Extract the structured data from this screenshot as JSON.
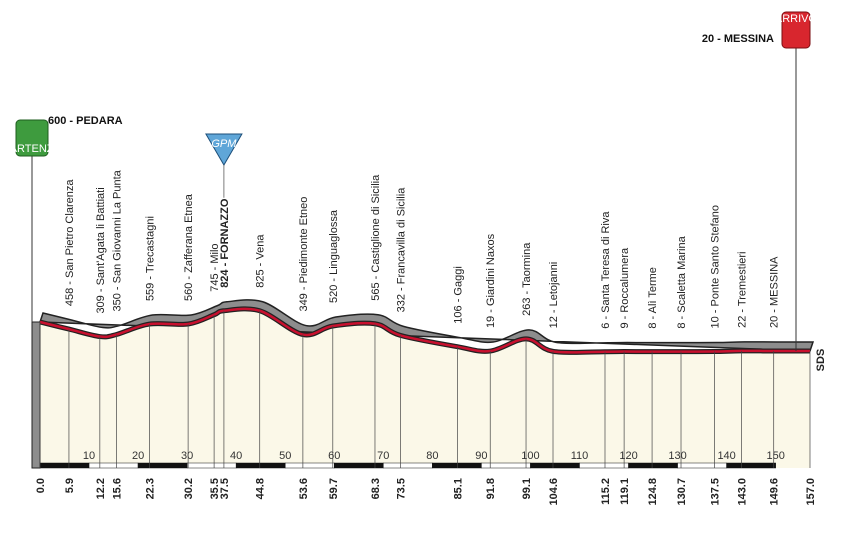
{
  "chart_data": {
    "type": "profile",
    "start": {
      "label": "600 - PEDARA",
      "altitude": 600,
      "km": {
        "value": 0,
        "label": "0.0"
      },
      "badge": "PARTENZA"
    },
    "finish": {
      "label": "20 - MESSINA",
      "altitude": 20,
      "km": {
        "value": 157,
        "label": "157.0"
      },
      "badge": "ARRIVO"
    },
    "waypoints": [
      {
        "label": "458 - San Pietro Clarenza",
        "altitude": 458,
        "km": 5.9
      },
      {
        "label": "309 - Sant'Agata li Battiati",
        "altitude": 309,
        "km": 12.2
      },
      {
        "label": "350 - San Giovanni La Punta",
        "altitude": 350,
        "km": 15.6
      },
      {
        "label": "559 - Trecastagni",
        "altitude": 559,
        "km": 22.3
      },
      {
        "label": "560 - Zafferana Etnea",
        "altitude": 560,
        "km": 30.2
      },
      {
        "label": "745 - Milo",
        "altitude": 745,
        "km": 35.5
      },
      {
        "label": "824 - FORNAZZO",
        "altitude": 824,
        "km": 37.5,
        "gpm": "GPM"
      },
      {
        "label": "825 - Vena",
        "altitude": 825,
        "km": 44.8
      },
      {
        "label": "349 - Piedimonte Etneo",
        "altitude": 349,
        "km": 53.6
      },
      {
        "label": "520 - Linguaglossa",
        "altitude": 520,
        "km": 59.7
      },
      {
        "label": "565 - Castiglione di Sicilia",
        "altitude": 565,
        "km": 68.3
      },
      {
        "label": "332 - Francavilla di Sicilia",
        "altitude": 332,
        "km": 73.5
      },
      {
        "label": "106 - Gaggi",
        "altitude": 106,
        "km": 85.1
      },
      {
        "label": "19 - Giardini Naxos",
        "altitude": 19,
        "km": 91.8
      },
      {
        "label": "263 - Taormina",
        "altitude": 263,
        "km": 99.1
      },
      {
        "label": "12 - Letojanni",
        "altitude": 12,
        "km": 104.6
      },
      {
        "label": "6 - Santa Teresa di Riva",
        "altitude": 6,
        "km": 115.2
      },
      {
        "label": "9 - Roccalumera",
        "altitude": 9,
        "km": 119.1
      },
      {
        "label": "8 - Alì Terme",
        "altitude": 8,
        "km": 124.8
      },
      {
        "label": "8 - Scaletta Marina",
        "altitude": 8,
        "km": 130.7
      },
      {
        "label": "10 - Ponte Santo Stefano",
        "altitude": 10,
        "km": 137.5
      },
      {
        "label": "22 - Tremestieri",
        "altitude": 22,
        "km": {
          "value": 143,
          "label": "143.0"
        }
      },
      {
        "label": "20 - MESSINA",
        "altitude": 20,
        "km": 149.6
      }
    ],
    "xlim": [
      0,
      157
    ],
    "xticks": [
      10,
      20,
      30,
      40,
      50,
      60,
      70,
      80,
      90,
      100,
      110,
      120,
      130,
      140,
      150
    ],
    "sds_label": "SDS"
  }
}
